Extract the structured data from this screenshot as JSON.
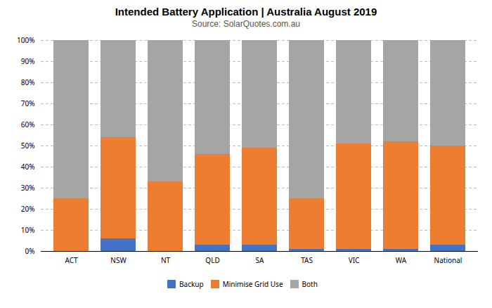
{
  "chart_data": {
    "type": "bar",
    "stacked": true,
    "title": "Intended Battery Application | Australia August 2019",
    "subtitle": "Source: SolarQuotes.com.au",
    "categories": [
      "ACT",
      "NSW",
      "NT",
      "QLD",
      "SA",
      "TAS",
      "VIC",
      "WA",
      "National"
    ],
    "series": [
      {
        "name": "Backup",
        "color": "#4472c4",
        "values": [
          0,
          6,
          0,
          3,
          3,
          1,
          1,
          1,
          3
        ]
      },
      {
        "name": "Minimise Grid Use",
        "color": "#ed7d31",
        "values": [
          25,
          48,
          33,
          43,
          46,
          24,
          50,
          51,
          47
        ]
      },
      {
        "name": "Both",
        "color": "#a5a5a5",
        "values": [
          75,
          46,
          67,
          54,
          51,
          75,
          49,
          48,
          50
        ]
      }
    ],
    "ylim": [
      0,
      100
    ],
    "yticks": [
      {
        "value": 0,
        "label": "0%"
      },
      {
        "value": 10,
        "label": "10%"
      },
      {
        "value": 20,
        "label": "20%"
      },
      {
        "value": 30,
        "label": "30%"
      },
      {
        "value": 40,
        "label": "40%"
      },
      {
        "value": 50,
        "label": "50%"
      },
      {
        "value": 60,
        "label": "60%"
      },
      {
        "value": 70,
        "label": "70%"
      },
      {
        "value": 80,
        "label": "80%"
      },
      {
        "value": 90,
        "label": "90%"
      },
      {
        "value": 100,
        "label": "100%"
      }
    ],
    "grid": true,
    "legend": "bottom"
  }
}
